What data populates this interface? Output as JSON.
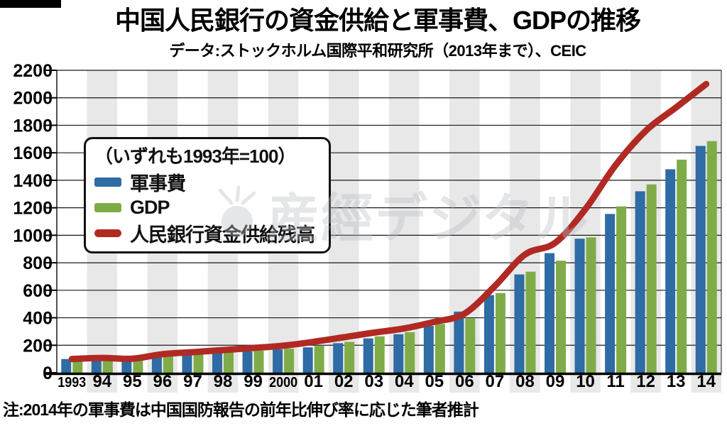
{
  "header": {
    "title": "中国人民銀行の資金供給と軍事費、GDPの推移",
    "subtitle": "データ:ストックホルム国際平和研究所（2013年まで）、CEIC"
  },
  "legend": {
    "caption": "（いずれも1993年=100）",
    "items": [
      {
        "label": "軍事費",
        "color": "#2F6BA4",
        "shape": "bar"
      },
      {
        "label": "GDP",
        "color": "#7FAC48",
        "shape": "bar"
      },
      {
        "label": "人民銀行資金供給残高",
        "color": "#B02A23",
        "shape": "line"
      }
    ]
  },
  "watermark": {
    "text": "産經デジタル"
  },
  "note": "注:2014年の軍事費は中国国防報告の前年比伸び率に応じた筆者推計",
  "chart_data": {
    "type": "bar",
    "subtype": "grouped-bars-with-line",
    "title": "中国人民銀行の資金供給と軍事費、GDPの推移",
    "xlabel": "",
    "ylabel": "",
    "index_note": "1993=100",
    "categories": [
      "1993",
      "94",
      "95",
      "96",
      "97",
      "98",
      "99",
      "2000",
      "01",
      "02",
      "03",
      "04",
      "05",
      "06",
      "07",
      "08",
      "09",
      "10",
      "11",
      "12",
      "13",
      "14"
    ],
    "series": [
      {
        "name": "軍事費",
        "type": "bar",
        "color": "#2F6BA4",
        "values": [
          100,
          115,
          120,
          125,
          135,
          145,
          155,
          170,
          185,
          215,
          250,
          280,
          340,
          445,
          565,
          715,
          870,
          975,
          1155,
          1320,
          1480,
          1650
        ]
      },
      {
        "name": "GDP",
        "type": "bar",
        "color": "#7FAC48",
        "values": [
          100,
          112,
          118,
          130,
          140,
          150,
          160,
          175,
          195,
          225,
          265,
          295,
          355,
          395,
          580,
          735,
          815,
          985,
          1210,
          1370,
          1550,
          1685
        ]
      },
      {
        "name": "人民銀行資金供給残高",
        "type": "line",
        "color": "#B02A23",
        "values": [
          100,
          108,
          102,
          135,
          150,
          165,
          180,
          197,
          225,
          258,
          292,
          322,
          370,
          430,
          630,
          860,
          945,
          1190,
          1510,
          1760,
          1930,
          2100
        ]
      }
    ],
    "ylim": [
      0,
      2200
    ],
    "ytick": 200,
    "grid": true,
    "stripe_color": "#E8E8E8",
    "legend_position": "upper-left"
  }
}
